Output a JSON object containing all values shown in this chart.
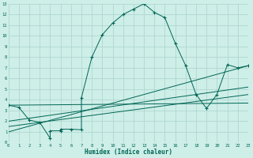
{
  "xlabel": "Humidex (Indice chaleur)",
  "bg_color": "#ceeee8",
  "grid_color": "#aad4cc",
  "line_color": "#006655",
  "xlim": [
    0,
    23
  ],
  "ylim": [
    0,
    13
  ],
  "xticks": [
    0,
    1,
    2,
    3,
    4,
    5,
    6,
    7,
    8,
    9,
    10,
    11,
    12,
    13,
    14,
    15,
    16,
    17,
    18,
    19,
    20,
    21,
    22,
    23
  ],
  "yticks": [
    0,
    1,
    2,
    3,
    4,
    5,
    6,
    7,
    8,
    9,
    10,
    11,
    12,
    13
  ],
  "main_x": [
    0,
    1,
    2,
    3,
    4,
    4,
    5,
    5,
    6,
    7,
    7,
    8,
    9,
    10,
    11,
    12,
    13,
    14,
    15,
    16,
    17,
    18,
    19,
    20,
    21,
    22,
    23
  ],
  "main_y": [
    3.5,
    3.3,
    2.1,
    1.9,
    0.4,
    1.1,
    1.1,
    1.25,
    1.25,
    1.2,
    4.2,
    8.0,
    10.1,
    11.2,
    12.0,
    12.5,
    13.0,
    12.2,
    11.7,
    9.3,
    7.2,
    4.5,
    3.2,
    4.5,
    7.3,
    7.0,
    7.2
  ],
  "reg_lines": [
    {
      "x": [
        0,
        23
      ],
      "y": [
        3.5,
        3.7
      ]
    },
    {
      "x": [
        0,
        23
      ],
      "y": [
        2.0,
        5.2
      ]
    },
    {
      "x": [
        0,
        23
      ],
      "y": [
        1.5,
        4.5
      ]
    },
    {
      "x": [
        0,
        23
      ],
      "y": [
        1.0,
        7.2
      ]
    }
  ]
}
